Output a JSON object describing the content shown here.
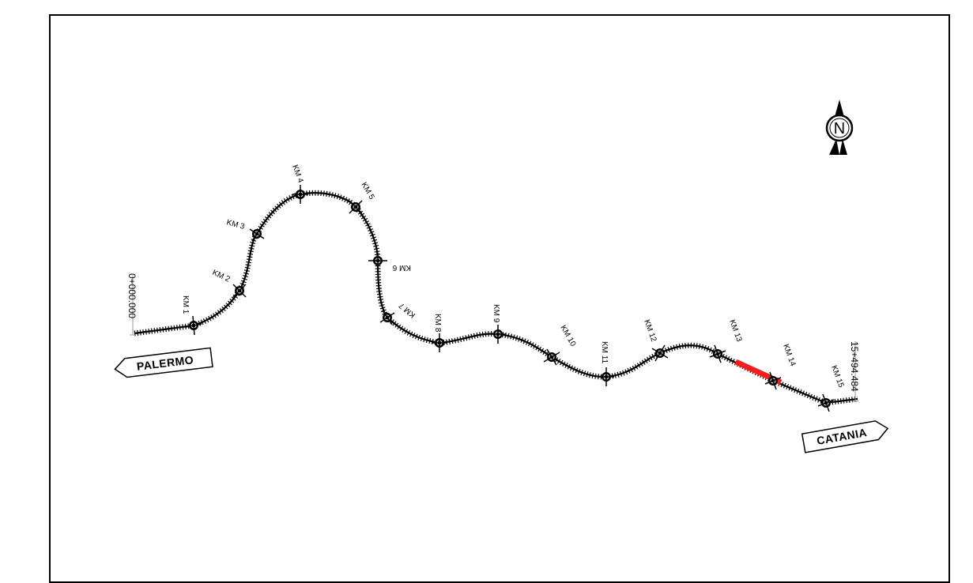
{
  "map": {
    "start_chainage": "0+000.000",
    "end_chainage": "15+494.484",
    "origin_city": "PALERMO",
    "destination_city": "CATANIA",
    "north_label": "N",
    "highlight_color": "#ff1a1a",
    "markers": [
      {
        "label": "KM 1"
      },
      {
        "label": "KM 2"
      },
      {
        "label": "KM 3"
      },
      {
        "label": "KM 4"
      },
      {
        "label": "KM 5"
      },
      {
        "label": "KM 6"
      },
      {
        "label": "KM 7"
      },
      {
        "label": "KM 8"
      },
      {
        "label": "KM 9"
      },
      {
        "label": "KM 10"
      },
      {
        "label": "KM 11"
      },
      {
        "label": "KM 12"
      },
      {
        "label": "KM 13"
      },
      {
        "label": "KM 14"
      },
      {
        "label": "KM 15"
      }
    ]
  }
}
